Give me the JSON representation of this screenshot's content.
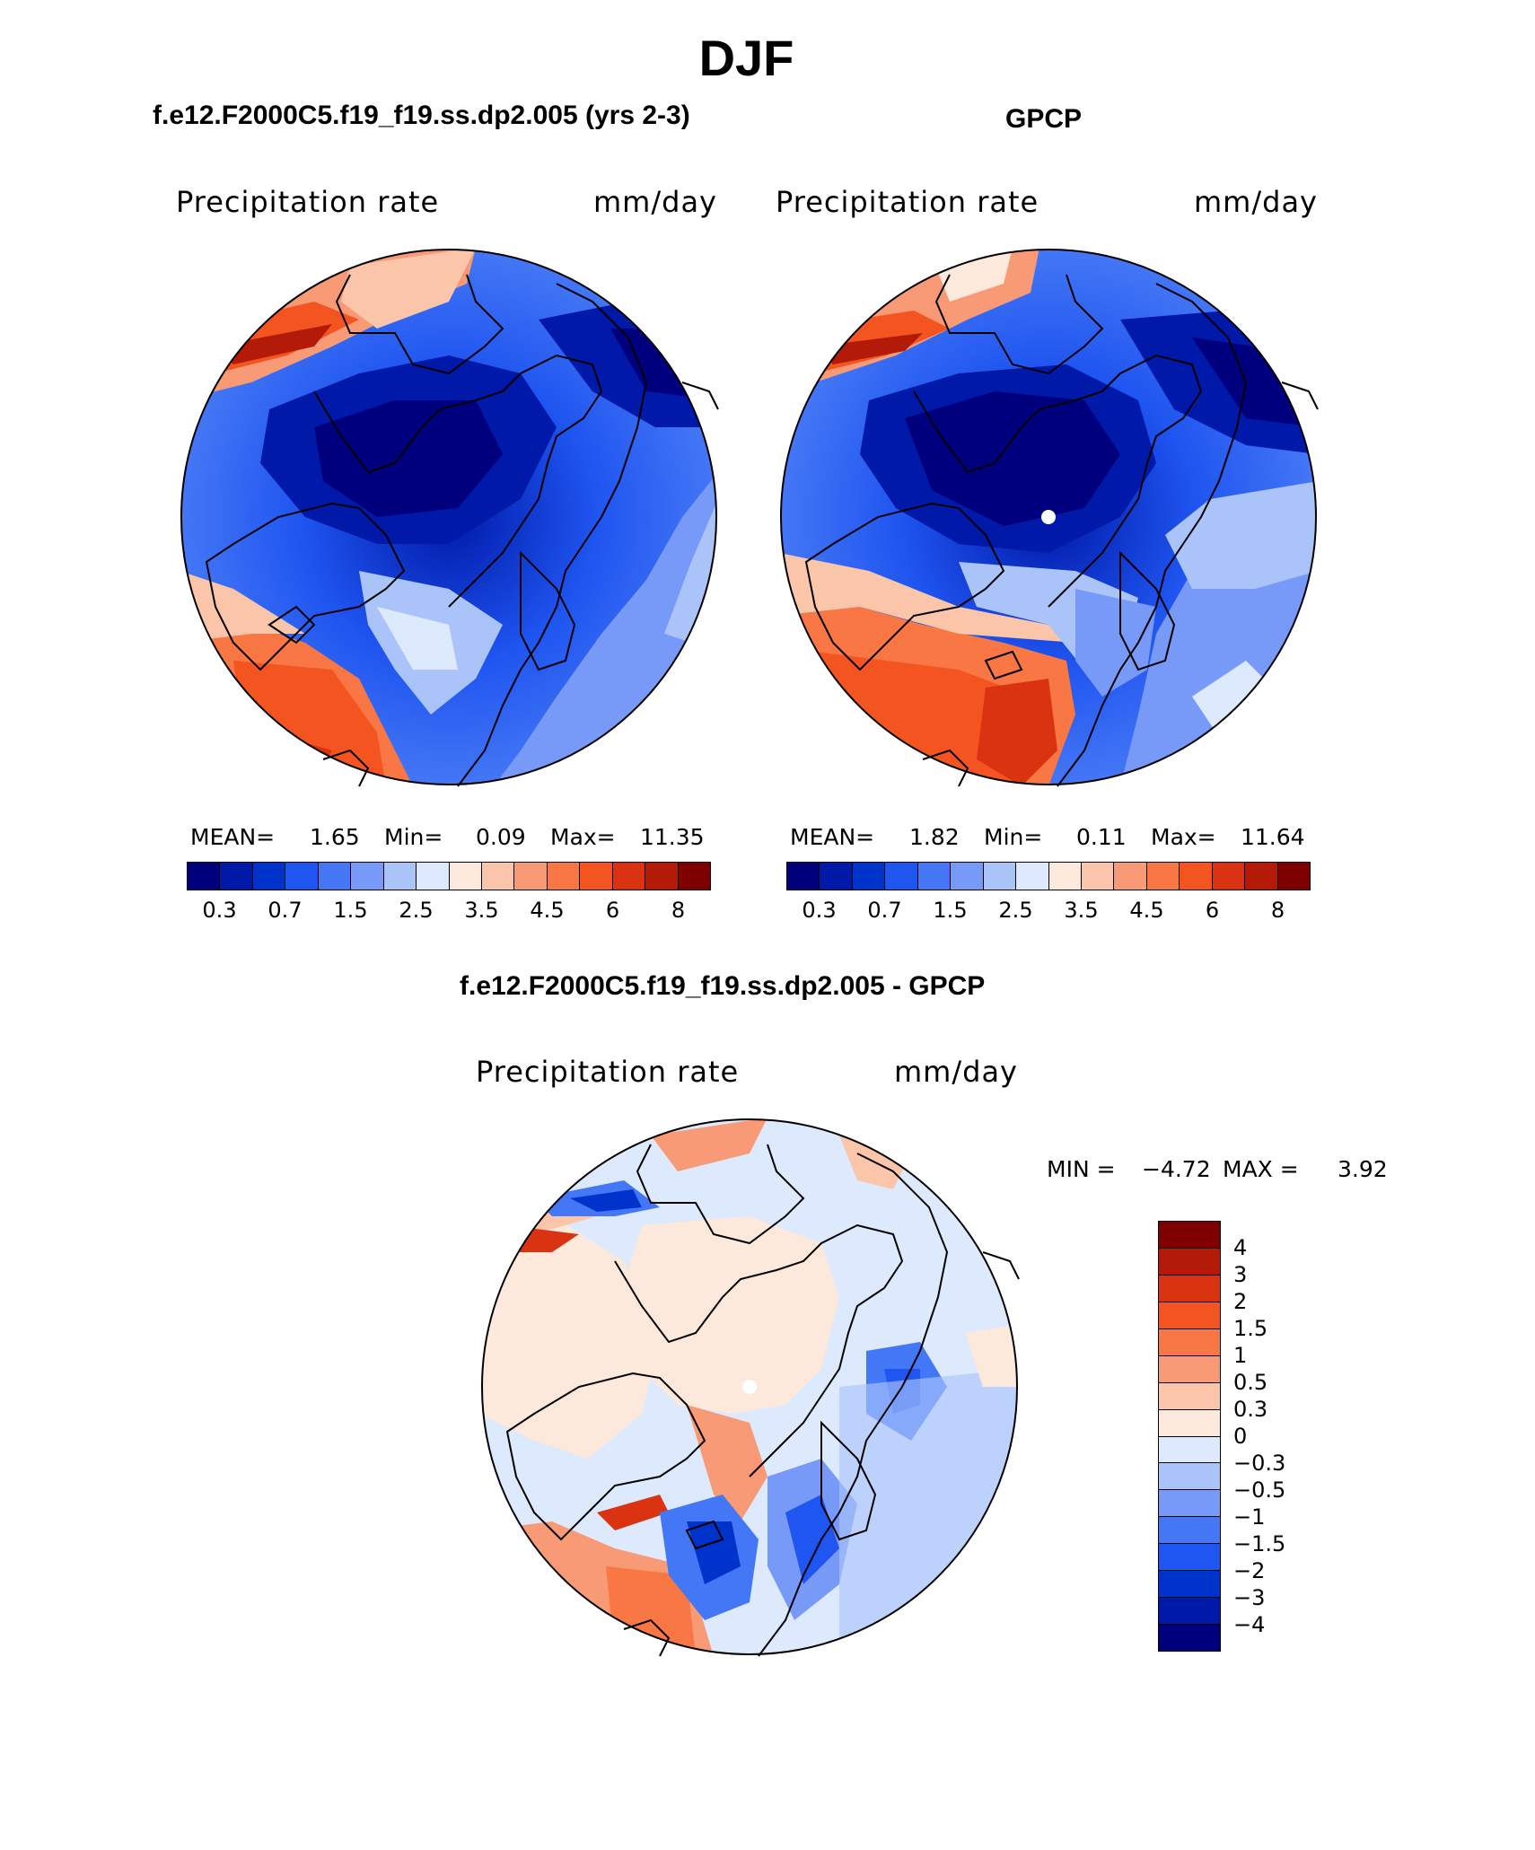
{
  "figure": {
    "title": "DJF"
  },
  "panels": {
    "model": {
      "title": "f.e12.F2000C5.f19_f19.ss.dp2.005 (yrs 2-3)",
      "variable": "Precipitation rate",
      "units": "mm/day",
      "stats": {
        "mean_label": "MEAN=",
        "mean": "1.65",
        "min_label": "Min=",
        "min": "0.09",
        "max_label": "Max=",
        "max": "11.35"
      }
    },
    "obs": {
      "title": "GPCP",
      "variable": "Precipitation rate",
      "units": "mm/day",
      "stats": {
        "mean_label": "MEAN=",
        "mean": "1.82",
        "min_label": "Min=",
        "min": "0.11",
        "max_label": "Max=",
        "max": "11.64"
      }
    },
    "diff": {
      "title": "f.e12.F2000C5.f19_f19.ss.dp2.005 - GPCP",
      "variable": "Precipitation rate",
      "units": "mm/day",
      "stats": {
        "min_label": "MIN =",
        "min": "−4.72",
        "max_label": "MAX =",
        "max": "3.92"
      }
    }
  },
  "colorbars": {
    "absolute": {
      "colors": [
        "#00007f",
        "#0019a8",
        "#0033cc",
        "#1f55f0",
        "#4477f5",
        "#7799f7",
        "#aac4fa",
        "#dde9fd",
        "#fde9dc",
        "#fbc5aa",
        "#f99a77",
        "#f87744",
        "#f45520",
        "#d93311",
        "#b41a08",
        "#7f0000"
      ],
      "labels": [
        "0.3",
        "0.7",
        "1.5",
        "2.5",
        "3.5",
        "4.5",
        "6",
        "8"
      ],
      "label_boundaries": [
        1,
        3,
        5,
        7,
        9,
        11,
        13,
        15
      ]
    },
    "difference": {
      "colors": [
        "#7f0000",
        "#b41a08",
        "#d93311",
        "#f45520",
        "#f87744",
        "#f99a77",
        "#fbc5aa",
        "#fde9dc",
        "#dde9fd",
        "#aac4fa",
        "#7799f7",
        "#4477f5",
        "#1f55f0",
        "#0033cc",
        "#0019a8",
        "#00007f"
      ],
      "labels": [
        "4",
        "3",
        "2",
        "1.5",
        "1",
        "0.5",
        "0.3",
        "0",
        "−0.3",
        "−0.5",
        "−1",
        "−1.5",
        "−2",
        "−3",
        "−4"
      ]
    }
  }
}
